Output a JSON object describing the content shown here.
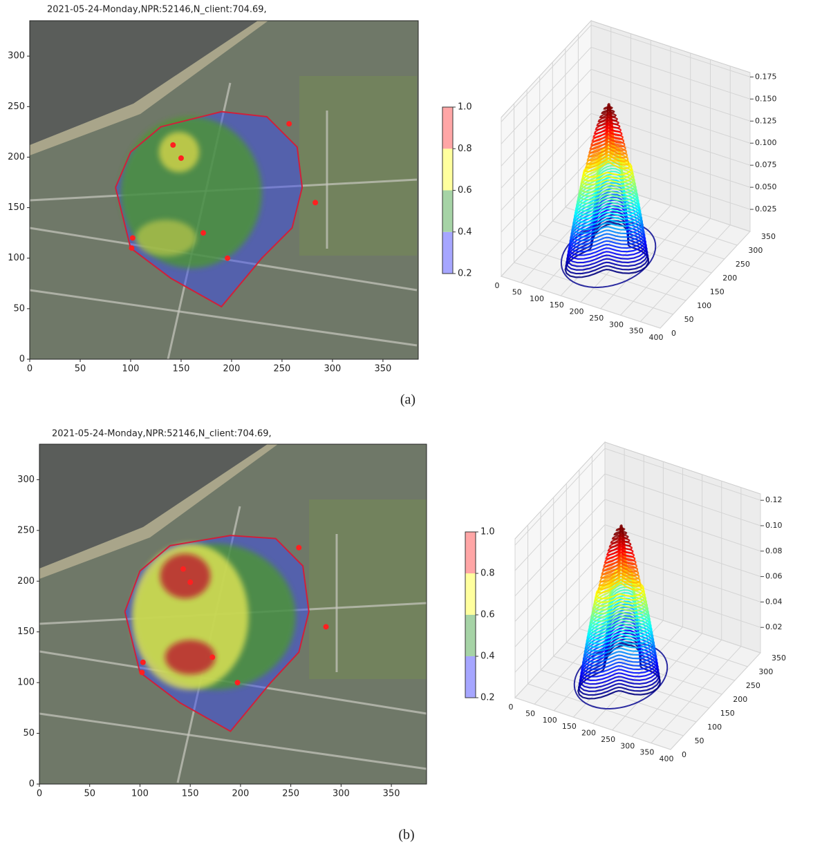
{
  "chart_data": [
    {
      "type": "scatter",
      "title": "2021-05-24-Monday,NPR:52146,N_client:704.69,",
      "caption": "(a)",
      "x": [
        142,
        150,
        257,
        283,
        172,
        196,
        102,
        101
      ],
      "y": [
        212,
        199,
        233,
        155,
        125,
        100,
        120,
        110
      ],
      "color": "#ff2020",
      "xlim": [
        0,
        385
      ],
      "ylim": [
        0,
        335
      ],
      "xticks": [
        0,
        50,
        100,
        150,
        200,
        250,
        300,
        350
      ],
      "yticks": [
        0,
        50,
        100,
        150,
        200,
        250,
        300
      ],
      "boundary": {
        "x": [
          85,
          100,
          130,
          190,
          235,
          265,
          270,
          260,
          230,
          190,
          140,
          100,
          85
        ],
        "y": [
          170,
          205,
          230,
          245,
          240,
          210,
          170,
          130,
          100,
          52,
          80,
          110,
          170
        ],
        "color": "#d0203a"
      },
      "colorbar": {
        "lim": [
          0.2,
          1
        ],
        "ticks": [
          0.2,
          0.4,
          0.6,
          0.8,
          {
            "value": 1,
            "label": "1.0"
          }
        ],
        "colors": [
          "#a6a6ff",
          "#a6d3a6",
          "#ffff9e",
          "#ffa6a6"
        ]
      }
    },
    {
      "type": "surface3d",
      "xlim": [
        0,
        400
      ],
      "ylim": [
        0,
        350
      ],
      "zlim": [
        0,
        0.18
      ],
      "xticks": [
        0,
        50,
        100,
        150,
        200,
        250,
        300,
        350,
        400
      ],
      "yticks": [
        0,
        50,
        100,
        150,
        200,
        250,
        300,
        350
      ],
      "zticks": [
        0.025,
        {
          "value": 0.05,
          "label": "0.050"
        },
        0.075,
        {
          "value": 0.1,
          "label": "0.100"
        },
        0.125,
        {
          "value": 0.15,
          "label": "0.150"
        },
        0.175
      ]
    },
    {
      "type": "scatter",
      "title": "2021-05-24-Monday,NPR:52146,N_client:704.69,",
      "caption": "(b)",
      "x": [
        143,
        150,
        258,
        285,
        172,
        197,
        103,
        102
      ],
      "y": [
        212,
        199,
        233,
        155,
        125,
        100,
        120,
        110
      ],
      "color": "#ff2020",
      "xlim": [
        0,
        385
      ],
      "ylim": [
        0,
        335
      ],
      "xticks": [
        0,
        50,
        100,
        150,
        200,
        250,
        300,
        350
      ],
      "yticks": [
        0,
        50,
        100,
        150,
        200,
        250,
        300
      ],
      "boundary": {
        "x": [
          85,
          100,
          130,
          190,
          235,
          262,
          268,
          258,
          230,
          190,
          140,
          100,
          85
        ],
        "y": [
          170,
          210,
          235,
          245,
          242,
          215,
          170,
          130,
          100,
          52,
          80,
          110,
          170
        ],
        "color": "#d0203a"
      },
      "colorbar": {
        "lim": [
          0.2,
          1
        ],
        "ticks": [
          0.2,
          0.4,
          0.6,
          0.8,
          {
            "value": 1,
            "label": "1.0"
          }
        ],
        "colors": [
          "#a6a6ff",
          "#a6d3a6",
          "#ffff9e",
          "#ffa6a6"
        ]
      }
    },
    {
      "type": "surface3d",
      "xlim": [
        0,
        400
      ],
      "ylim": [
        0,
        350
      ],
      "zlim": [
        0,
        0.125
      ],
      "xticks": [
        0,
        50,
        100,
        150,
        200,
        250,
        300,
        350,
        400
      ],
      "yticks": [
        0,
        50,
        100,
        150,
        200,
        250,
        300,
        350
      ],
      "zticks": [
        0.02,
        0.04,
        0.06,
        0.08,
        {
          "value": 0.1,
          "label": "0.10"
        },
        {
          "value": 0.12,
          "label": "0.12"
        }
      ]
    }
  ]
}
